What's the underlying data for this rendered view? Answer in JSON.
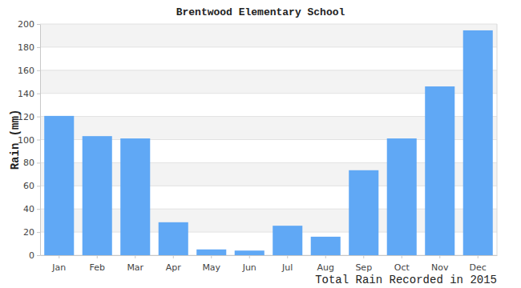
{
  "chart_data": {
    "type": "bar",
    "title": "Brentwood Elementary School",
    "x_label": "Total Rain Recorded in 2015",
    "y_label": "Rain (mm)",
    "categories": [
      "Jan",
      "Feb",
      "Mar",
      "Apr",
      "May",
      "Jun",
      "Jul",
      "Aug",
      "Sep",
      "Oct",
      "Nov",
      "Dec"
    ],
    "values": [
      120.5,
      103,
      101,
      28.5,
      5,
      4,
      25.5,
      16,
      73.5,
      101,
      146,
      194.5
    ],
    "color": "#60a8f5",
    "ylim": [
      0,
      200
    ],
    "yticks": [
      0,
      20,
      40,
      60,
      80,
      100,
      120,
      140,
      160,
      180,
      200
    ],
    "grid": true
  }
}
